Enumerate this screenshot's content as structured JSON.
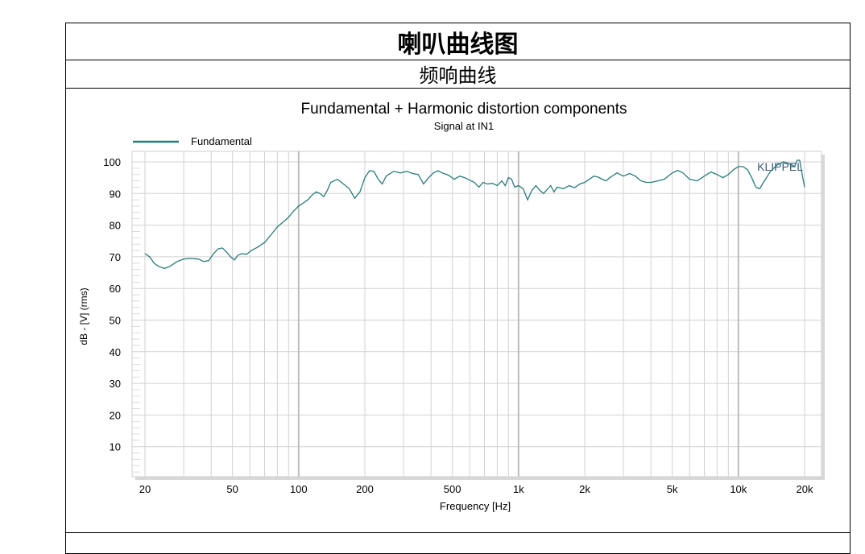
{
  "document": {
    "title": "喇叭曲线图",
    "subtitle": "频响曲线"
  },
  "colors": {
    "line": "#2a7b7b",
    "grid": "#d2d2d2",
    "grid_decade": "#bdbdbd",
    "axis_text": "#000000",
    "watermark": "#3a5a7a"
  },
  "chart_data": {
    "type": "line",
    "title": "Fundamental + Harmonic distortion components",
    "subtitle": "Signal at IN1",
    "xlabel": "Frequency [Hz]",
    "ylabel": "dB - [V] (rms)",
    "x_scale": "log",
    "xlim": [
      20,
      20000
    ],
    "ylim": [
      0,
      100
    ],
    "grid": true,
    "legend": "top-left",
    "watermark": "KLIPPEL",
    "x_ticks": [
      {
        "value": 20,
        "label": "20"
      },
      {
        "value": 50,
        "label": "50"
      },
      {
        "value": 100,
        "label": "100"
      },
      {
        "value": 200,
        "label": "200"
      },
      {
        "value": 500,
        "label": "500"
      },
      {
        "value": 1000,
        "label": "1k"
      },
      {
        "value": 2000,
        "label": "2k"
      },
      {
        "value": 5000,
        "label": "5k"
      },
      {
        "value": 10000,
        "label": "10k"
      },
      {
        "value": 20000,
        "label": "20k"
      }
    ],
    "y_ticks": [
      10,
      20,
      30,
      40,
      50,
      60,
      70,
      80,
      90,
      100
    ],
    "series": [
      {
        "name": "Fundamental",
        "color": "#2a7b7b",
        "points": [
          [
            20,
            71
          ],
          [
            21,
            70
          ],
          [
            22,
            68
          ],
          [
            23,
            67
          ],
          [
            24.5,
            66.3
          ],
          [
            26,
            67
          ],
          [
            28,
            68.5
          ],
          [
            30,
            69.3
          ],
          [
            32,
            69.5
          ],
          [
            35,
            69.3
          ],
          [
            37,
            68.5
          ],
          [
            39,
            68.8
          ],
          [
            41,
            71
          ],
          [
            43,
            72.5
          ],
          [
            45,
            72.8
          ],
          [
            47,
            71.5
          ],
          [
            49,
            70
          ],
          [
            51,
            69
          ],
          [
            53,
            70.5
          ],
          [
            55,
            71
          ],
          [
            58,
            70.8
          ],
          [
            61,
            72
          ],
          [
            65,
            73
          ],
          [
            70,
            74.5
          ],
          [
            75,
            77
          ],
          [
            80,
            79.5
          ],
          [
            85,
            81
          ],
          [
            90,
            82.5
          ],
          [
            95,
            84.5
          ],
          [
            100,
            86
          ],
          [
            105,
            87
          ],
          [
            110,
            88
          ],
          [
            115,
            89.5
          ],
          [
            120,
            90.5
          ],
          [
            125,
            90
          ],
          [
            130,
            89
          ],
          [
            135,
            91
          ],
          [
            140,
            93.5
          ],
          [
            150,
            94.5
          ],
          [
            160,
            93
          ],
          [
            170,
            91.5
          ],
          [
            180,
            88.5
          ],
          [
            190,
            90.5
          ],
          [
            200,
            95
          ],
          [
            210,
            97.2
          ],
          [
            220,
            97
          ],
          [
            230,
            94.5
          ],
          [
            240,
            93
          ],
          [
            250,
            95.5
          ],
          [
            270,
            97
          ],
          [
            290,
            96.5
          ],
          [
            310,
            97
          ],
          [
            330,
            96.3
          ],
          [
            350,
            96
          ],
          [
            370,
            93
          ],
          [
            390,
            95
          ],
          [
            410,
            96.5
          ],
          [
            430,
            97.2
          ],
          [
            450,
            96.5
          ],
          [
            480,
            95.8
          ],
          [
            510,
            94.5
          ],
          [
            540,
            95.5
          ],
          [
            570,
            95
          ],
          [
            600,
            94.2
          ],
          [
            630,
            93.5
          ],
          [
            660,
            92
          ],
          [
            690,
            93.5
          ],
          [
            720,
            93
          ],
          [
            760,
            93.2
          ],
          [
            800,
            92.5
          ],
          [
            840,
            94
          ],
          [
            870,
            92.5
          ],
          [
            900,
            95
          ],
          [
            930,
            94.5
          ],
          [
            960,
            92
          ],
          [
            1000,
            92.5
          ],
          [
            1050,
            91.5
          ],
          [
            1100,
            88
          ],
          [
            1150,
            91
          ],
          [
            1200,
            92.5
          ],
          [
            1250,
            91
          ],
          [
            1300,
            90
          ],
          [
            1400,
            92.5
          ],
          [
            1450,
            90.5
          ],
          [
            1500,
            92
          ],
          [
            1600,
            91.5
          ],
          [
            1700,
            92.5
          ],
          [
            1800,
            91.8
          ],
          [
            1900,
            93
          ],
          [
            2000,
            93.5
          ],
          [
            2100,
            94.5
          ],
          [
            2200,
            95.5
          ],
          [
            2300,
            95.2
          ],
          [
            2400,
            94.5
          ],
          [
            2500,
            94
          ],
          [
            2600,
            95
          ],
          [
            2800,
            96.5
          ],
          [
            3000,
            95.5
          ],
          [
            3200,
            96.3
          ],
          [
            3400,
            95.5
          ],
          [
            3600,
            94
          ],
          [
            3800,
            93.5
          ],
          [
            4000,
            93.5
          ],
          [
            4300,
            94
          ],
          [
            4600,
            94.5
          ],
          [
            5000,
            96.5
          ],
          [
            5300,
            97.3
          ],
          [
            5600,
            96.5
          ],
          [
            6000,
            94.5
          ],
          [
            6500,
            94
          ],
          [
            7000,
            95.5
          ],
          [
            7500,
            96.8
          ],
          [
            8000,
            96
          ],
          [
            8500,
            95
          ],
          [
            9000,
            96
          ],
          [
            9500,
            97.5
          ],
          [
            10000,
            98.5
          ],
          [
            10500,
            98.5
          ],
          [
            11000,
            97.5
          ],
          [
            11500,
            95
          ],
          [
            12000,
            92
          ],
          [
            12500,
            91.5
          ],
          [
            13000,
            93.5
          ],
          [
            14000,
            97
          ],
          [
            15000,
            99
          ],
          [
            16000,
            100
          ],
          [
            17000,
            99.5
          ],
          [
            18000,
            98.5
          ],
          [
            18500,
            100.5
          ],
          [
            19000,
            100.5
          ],
          [
            19500,
            96
          ],
          [
            20000,
            92
          ]
        ]
      }
    ]
  }
}
